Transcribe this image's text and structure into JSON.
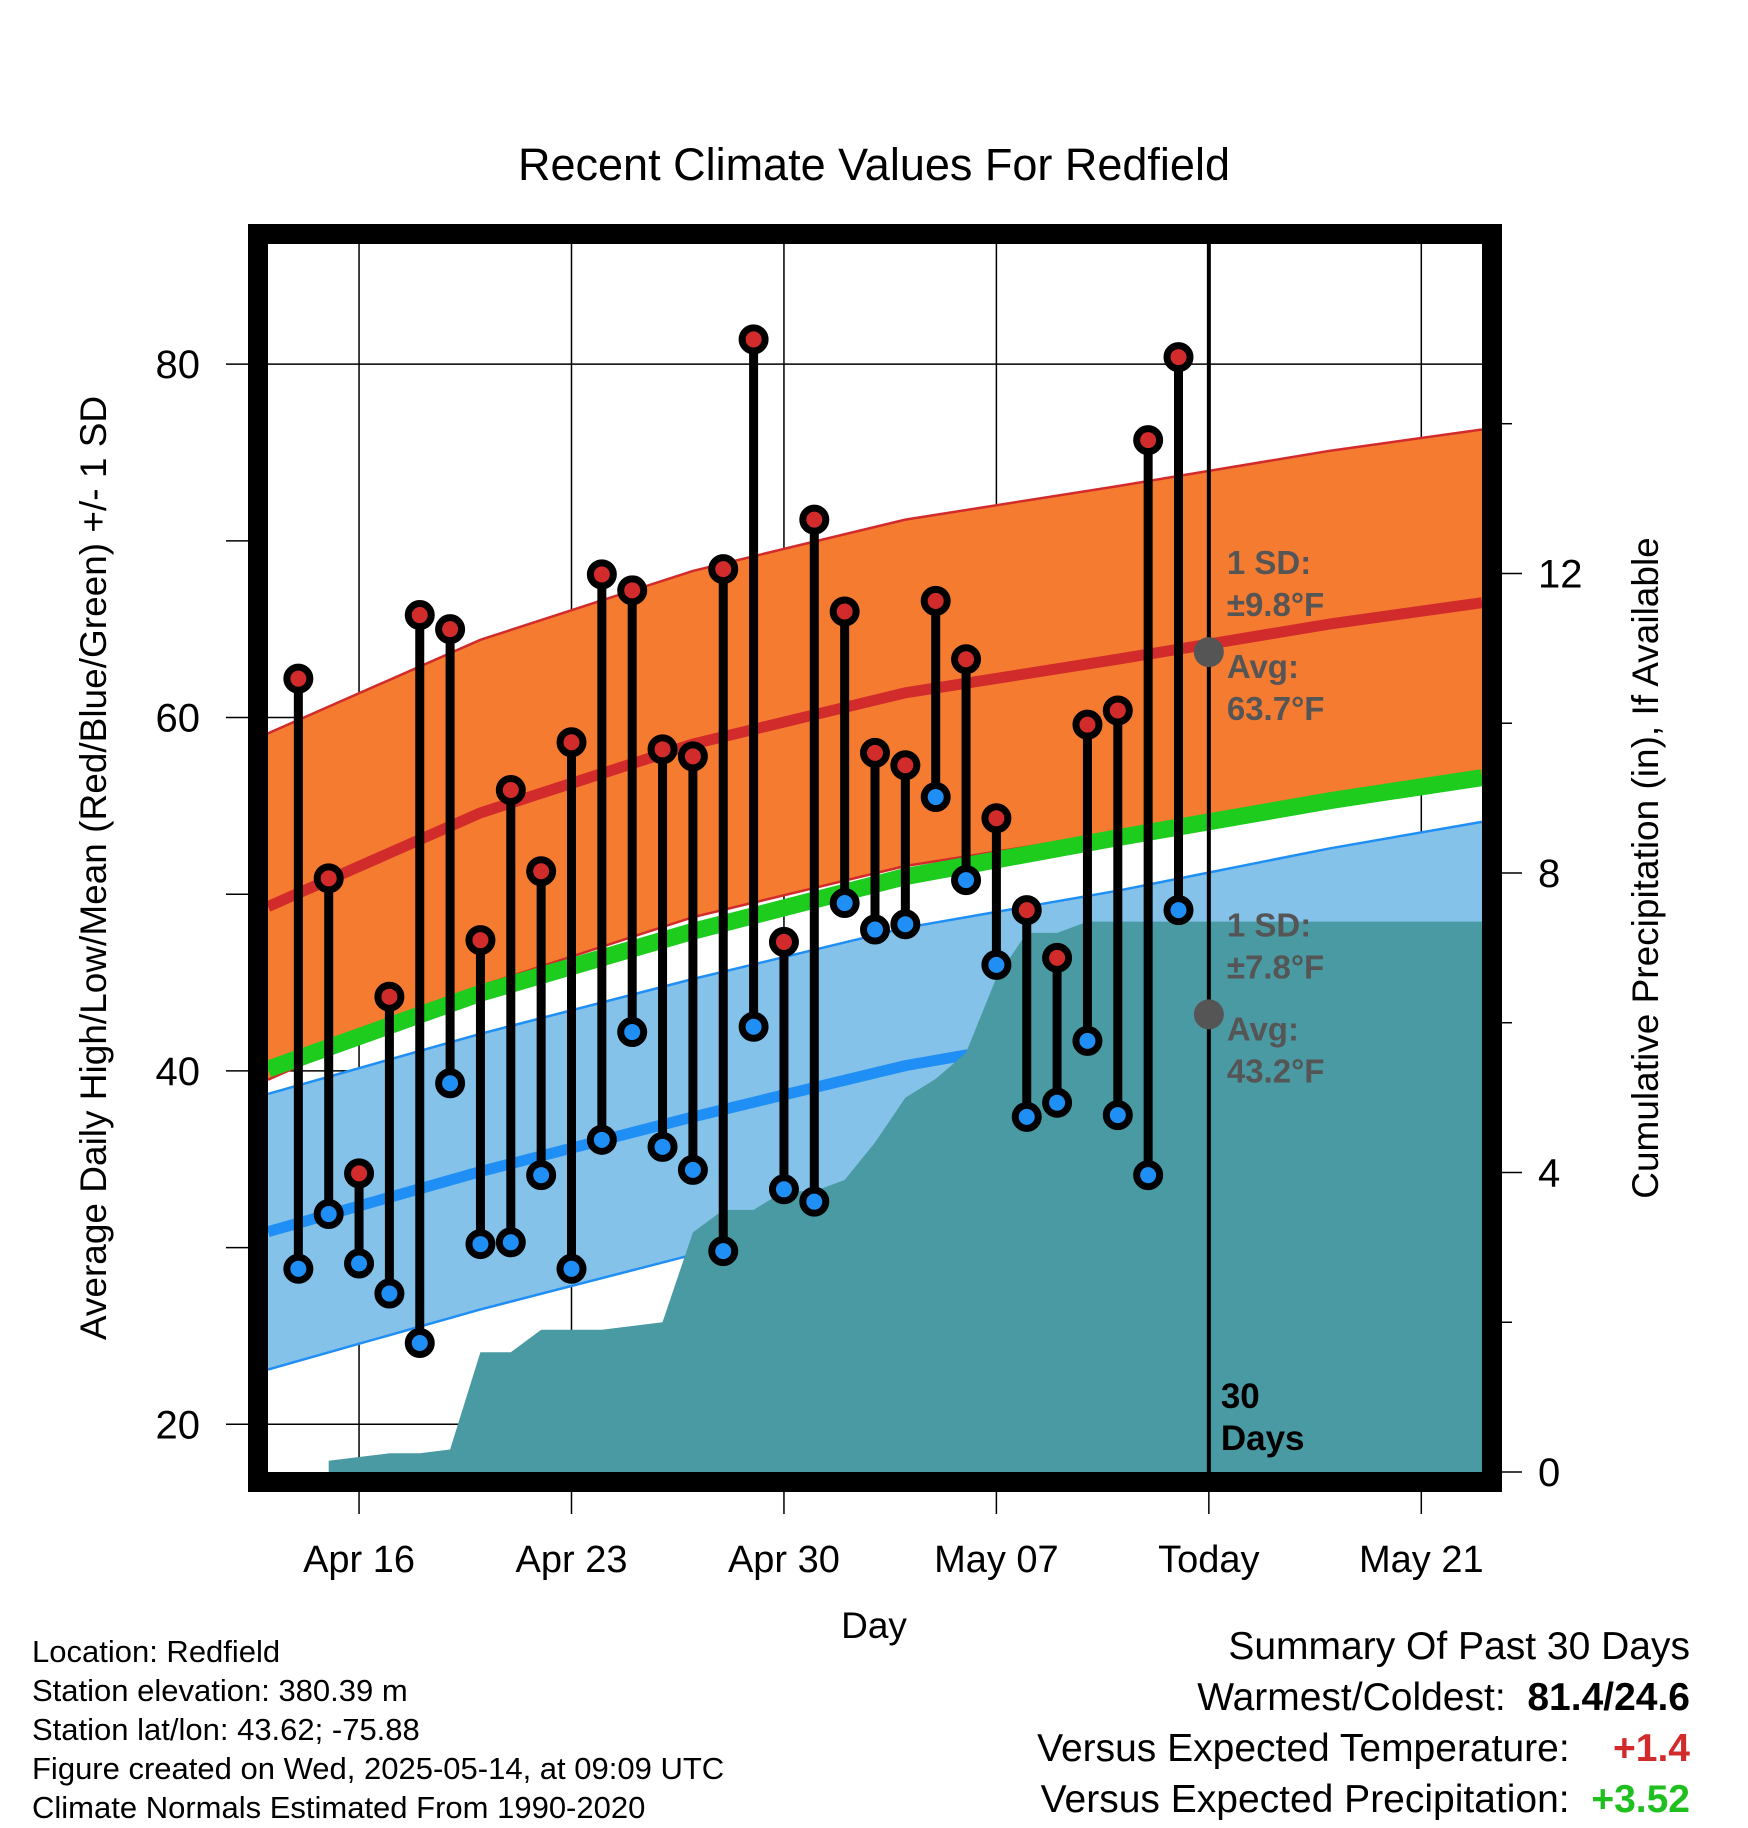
{
  "chart_data": {
    "type": "line",
    "title": "Recent Climate Values For Redfield",
    "xlabel": "Day",
    "ylabel": "Average Daily High/Low/Mean (Red/Blue/Green) +/- 1 SD",
    "y2label": "Cumulative Precipitation (in), If Available",
    "x_ticks": [
      "Apr 16",
      "Apr 23",
      "Apr 30",
      "May 07",
      "Today",
      "May 21"
    ],
    "y_ticks": [
      "20",
      "40",
      "60",
      "80"
    ],
    "y2_ticks": [
      "0",
      "4",
      "8",
      "12"
    ],
    "ylim": [
      17.3,
      86.8
    ],
    "y2lim": [
      0,
      16.4
    ],
    "xlim": [
      "2025-04-13",
      "2025-05-23"
    ],
    "grid": true,
    "days": [
      "2025-04-14",
      "2025-04-15",
      "2025-04-16",
      "2025-04-17",
      "2025-04-18",
      "2025-04-19",
      "2025-04-20",
      "2025-04-21",
      "2025-04-22",
      "2025-04-23",
      "2025-04-24",
      "2025-04-25",
      "2025-04-26",
      "2025-04-27",
      "2025-04-28",
      "2025-04-29",
      "2025-04-30",
      "2025-05-01",
      "2025-05-02",
      "2025-05-03",
      "2025-05-04",
      "2025-05-05",
      "2025-05-06",
      "2025-05-07",
      "2025-05-08",
      "2025-05-09",
      "2025-05-10",
      "2025-05-11",
      "2025-05-12",
      "2025-05-13"
    ],
    "series": [
      {
        "name": "High",
        "values": [
          62.2,
          50.9,
          34.2,
          44.2,
          65.8,
          65.0,
          47.4,
          55.9,
          51.3,
          58.6,
          68.1,
          67.2,
          58.2,
          57.8,
          68.4,
          81.4,
          47.3,
          71.2,
          66.0,
          58.0,
          57.3,
          66.6,
          63.3,
          54.3,
          49.1,
          46.4,
          59.6,
          60.4,
          75.7,
          80.4
        ]
      },
      {
        "name": "Low",
        "values": [
          28.8,
          31.9,
          29.1,
          27.4,
          24.6,
          39.3,
          30.2,
          30.3,
          34.1,
          28.8,
          36.1,
          42.2,
          35.7,
          34.4,
          29.8,
          42.5,
          33.3,
          32.6,
          49.5,
          48.0,
          48.3,
          55.5,
          50.8,
          46.0,
          37.4,
          38.2,
          41.7,
          37.5,
          34.1,
          49.1
        ]
      }
    ],
    "normals": {
      "days": [
        "2025-04-13",
        "2025-04-20",
        "2025-04-27",
        "2025-05-04",
        "2025-05-11",
        "2025-05-18",
        "2025-05-23"
      ],
      "high_avg": [
        49.3,
        54.6,
        58.5,
        61.4,
        63.3,
        65.3,
        66.5
      ],
      "low_avg": [
        30.9,
        34.3,
        37.4,
        40.3,
        42.4,
        44.8,
        46.3
      ],
      "mean_avg": [
        40.1,
        44.4,
        47.9,
        51.0,
        53.2,
        55.3,
        56.6
      ],
      "high_sd": 9.8,
      "low_sd": 7.8
    },
    "precip": {
      "days": [
        "2025-04-15",
        "2025-04-16",
        "2025-04-17",
        "2025-04-18",
        "2025-04-19",
        "2025-04-20",
        "2025-04-21",
        "2025-04-22",
        "2025-04-23",
        "2025-04-24",
        "2025-04-25",
        "2025-04-26",
        "2025-04-27",
        "2025-04-28",
        "2025-04-29",
        "2025-04-30",
        "2025-05-01",
        "2025-05-02",
        "2025-05-03",
        "2025-05-04",
        "2025-05-05",
        "2025-05-06",
        "2025-05-07",
        "2025-05-08",
        "2025-05-09",
        "2025-05-10",
        "2025-05-11",
        "2025-05-12",
        "2025-05-13",
        "2025-05-14"
      ],
      "values": [
        0.15,
        0.2,
        0.25,
        0.25,
        0.3,
        1.6,
        1.6,
        1.9,
        1.9,
        1.9,
        1.95,
        2.0,
        3.2,
        3.5,
        3.5,
        3.75,
        3.75,
        3.9,
        4.4,
        5.0,
        5.25,
        5.6,
        6.6,
        7.2,
        7.2,
        7.35,
        7.35,
        7.35,
        7.35,
        7.35
      ]
    },
    "annotations": [
      {
        "label": "1 SD:",
        "text": "±9.8°F"
      },
      {
        "label": "Avg:",
        "text": "63.7°F",
        "value": 63.7
      },
      {
        "label": "1 SD:",
        "text": "±7.8°F"
      },
      {
        "label": "Avg:",
        "text": "43.2°F",
        "value": 43.2
      },
      {
        "label": "30",
        "text": "Days"
      }
    ],
    "colors": {
      "high": "#d22b2b",
      "high_band": "#f47b30",
      "low": "#1f8ff5",
      "low_band": "#84c2ea",
      "mean": "#1ecc1e",
      "precip": "#4a9aa3",
      "today_marker": "#555555"
    }
  },
  "info": {
    "location": "Location: Redfield",
    "elevation": "Station elevation: 380.39 m",
    "latlon": "Station lat/lon: 43.62; -75.88",
    "created": "Figure created on Wed, 2025-05-14, at 09:09 UTC",
    "normals": "Climate Normals Estimated From 1990-2020"
  },
  "summary": {
    "title": "Summary Of Past 30 Days",
    "extremes_label": "Warmest/Coldest:",
    "extremes_value": "81.4/24.6",
    "temp_label": "Versus Expected Temperature:",
    "temp_value": "+1.4",
    "precip_label": "Versus Expected Precipitation:",
    "precip_value": "+3.52"
  }
}
